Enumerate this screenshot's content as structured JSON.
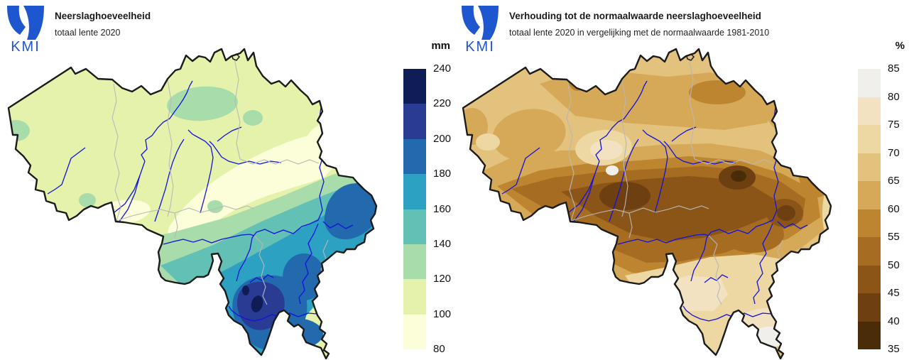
{
  "panels": [
    {
      "id": "precipitation",
      "logo": "KMI",
      "title": "Neerslaghoeveelheid",
      "subtitle": "totaal lente 2020",
      "legend_unit": "mm",
      "legend_ticks": [
        "240",
        "220",
        "200",
        "180",
        "160",
        "140",
        "120",
        "100",
        "80"
      ],
      "legend_colors": [
        "#101c55",
        "#2a3b93",
        "#2269ae",
        "#2da1c1",
        "#62c0b4",
        "#a8dcab",
        "#e5f2ab",
        "#fbfed9"
      ]
    },
    {
      "id": "ratio-to-normal",
      "logo": "KMI",
      "title": "Verhouding tot de normaalwaarde neerslaghoeveelheid",
      "subtitle": "totaal lente 2020 in vergelijking met de normaalwaarde 1981-2010",
      "legend_unit": "%",
      "legend_ticks": [
        "85",
        "80",
        "75",
        "70",
        "65",
        "60",
        "55",
        "50",
        "45",
        "40",
        "35"
      ],
      "legend_colors": [
        "#f1efec",
        "#f3e2c1",
        "#edd7a2",
        "#e3c27e",
        "#d5a958",
        "#bd8530",
        "#a66d22",
        "#8a5517",
        "#6e3f10",
        "#4a2d08"
      ]
    }
  ],
  "map_style": {
    "river_color": "#1212dd",
    "country_border_color": "#1b1b1b",
    "province_border_color": "#b8b8b8",
    "logo_color": "#1e56cf",
    "background_color": "#ffffff"
  }
}
